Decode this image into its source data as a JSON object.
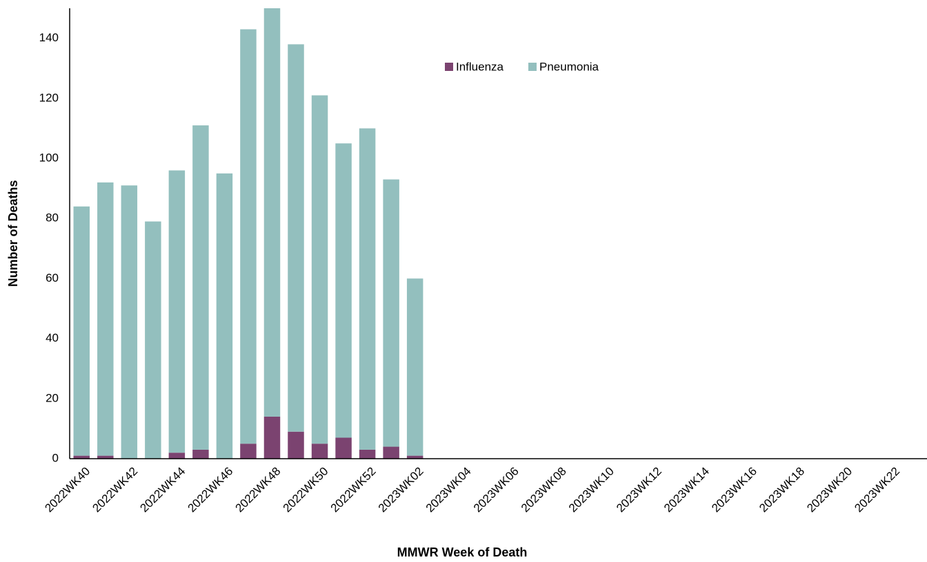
{
  "chart_data": {
    "type": "stacked_bar",
    "x_label": "MMWR Week of Death",
    "y_label": "Number of Deaths",
    "categories": [
      "2022WK40",
      null,
      "2022WK42",
      null,
      "2022WK44",
      null,
      "2022WK46",
      null,
      "2022WK48",
      null,
      "2022WK50",
      null,
      "2022WK52",
      null,
      "2023WK02",
      null,
      "2023WK04",
      null,
      "2023WK06",
      null,
      "2023WK08",
      null,
      "2023WK10",
      null,
      "2023WK12",
      null,
      "2023WK14",
      null,
      "2023WK16",
      null,
      "2023WK18",
      null,
      "2023WK20",
      null,
      "2023WK22",
      null
    ],
    "series": [
      {
        "name": "Influenza",
        "color": "#7b4370",
        "values": [
          1,
          1,
          0,
          0,
          2,
          3,
          0,
          5,
          14,
          9,
          5,
          7,
          3,
          4,
          1,
          null,
          null,
          null,
          null,
          null,
          null,
          null,
          null,
          null,
          null,
          null,
          null,
          null,
          null,
          null,
          null,
          null,
          null,
          null,
          null,
          null
        ]
      },
      {
        "name": "Pneumonia",
        "color": "#93bfbe",
        "values": [
          83,
          91,
          91,
          79,
          94,
          108,
          95,
          138,
          136,
          129,
          116,
          98,
          107,
          89,
          59,
          null,
          null,
          null,
          null,
          null,
          null,
          null,
          null,
          null,
          null,
          null,
          null,
          null,
          null,
          null,
          null,
          null,
          null,
          null,
          null,
          null
        ]
      }
    ],
    "ylim": [
      0,
      150
    ],
    "yticks": [
      0,
      20,
      40,
      60,
      80,
      100,
      120,
      140
    ],
    "grid": false,
    "legend": "top"
  }
}
